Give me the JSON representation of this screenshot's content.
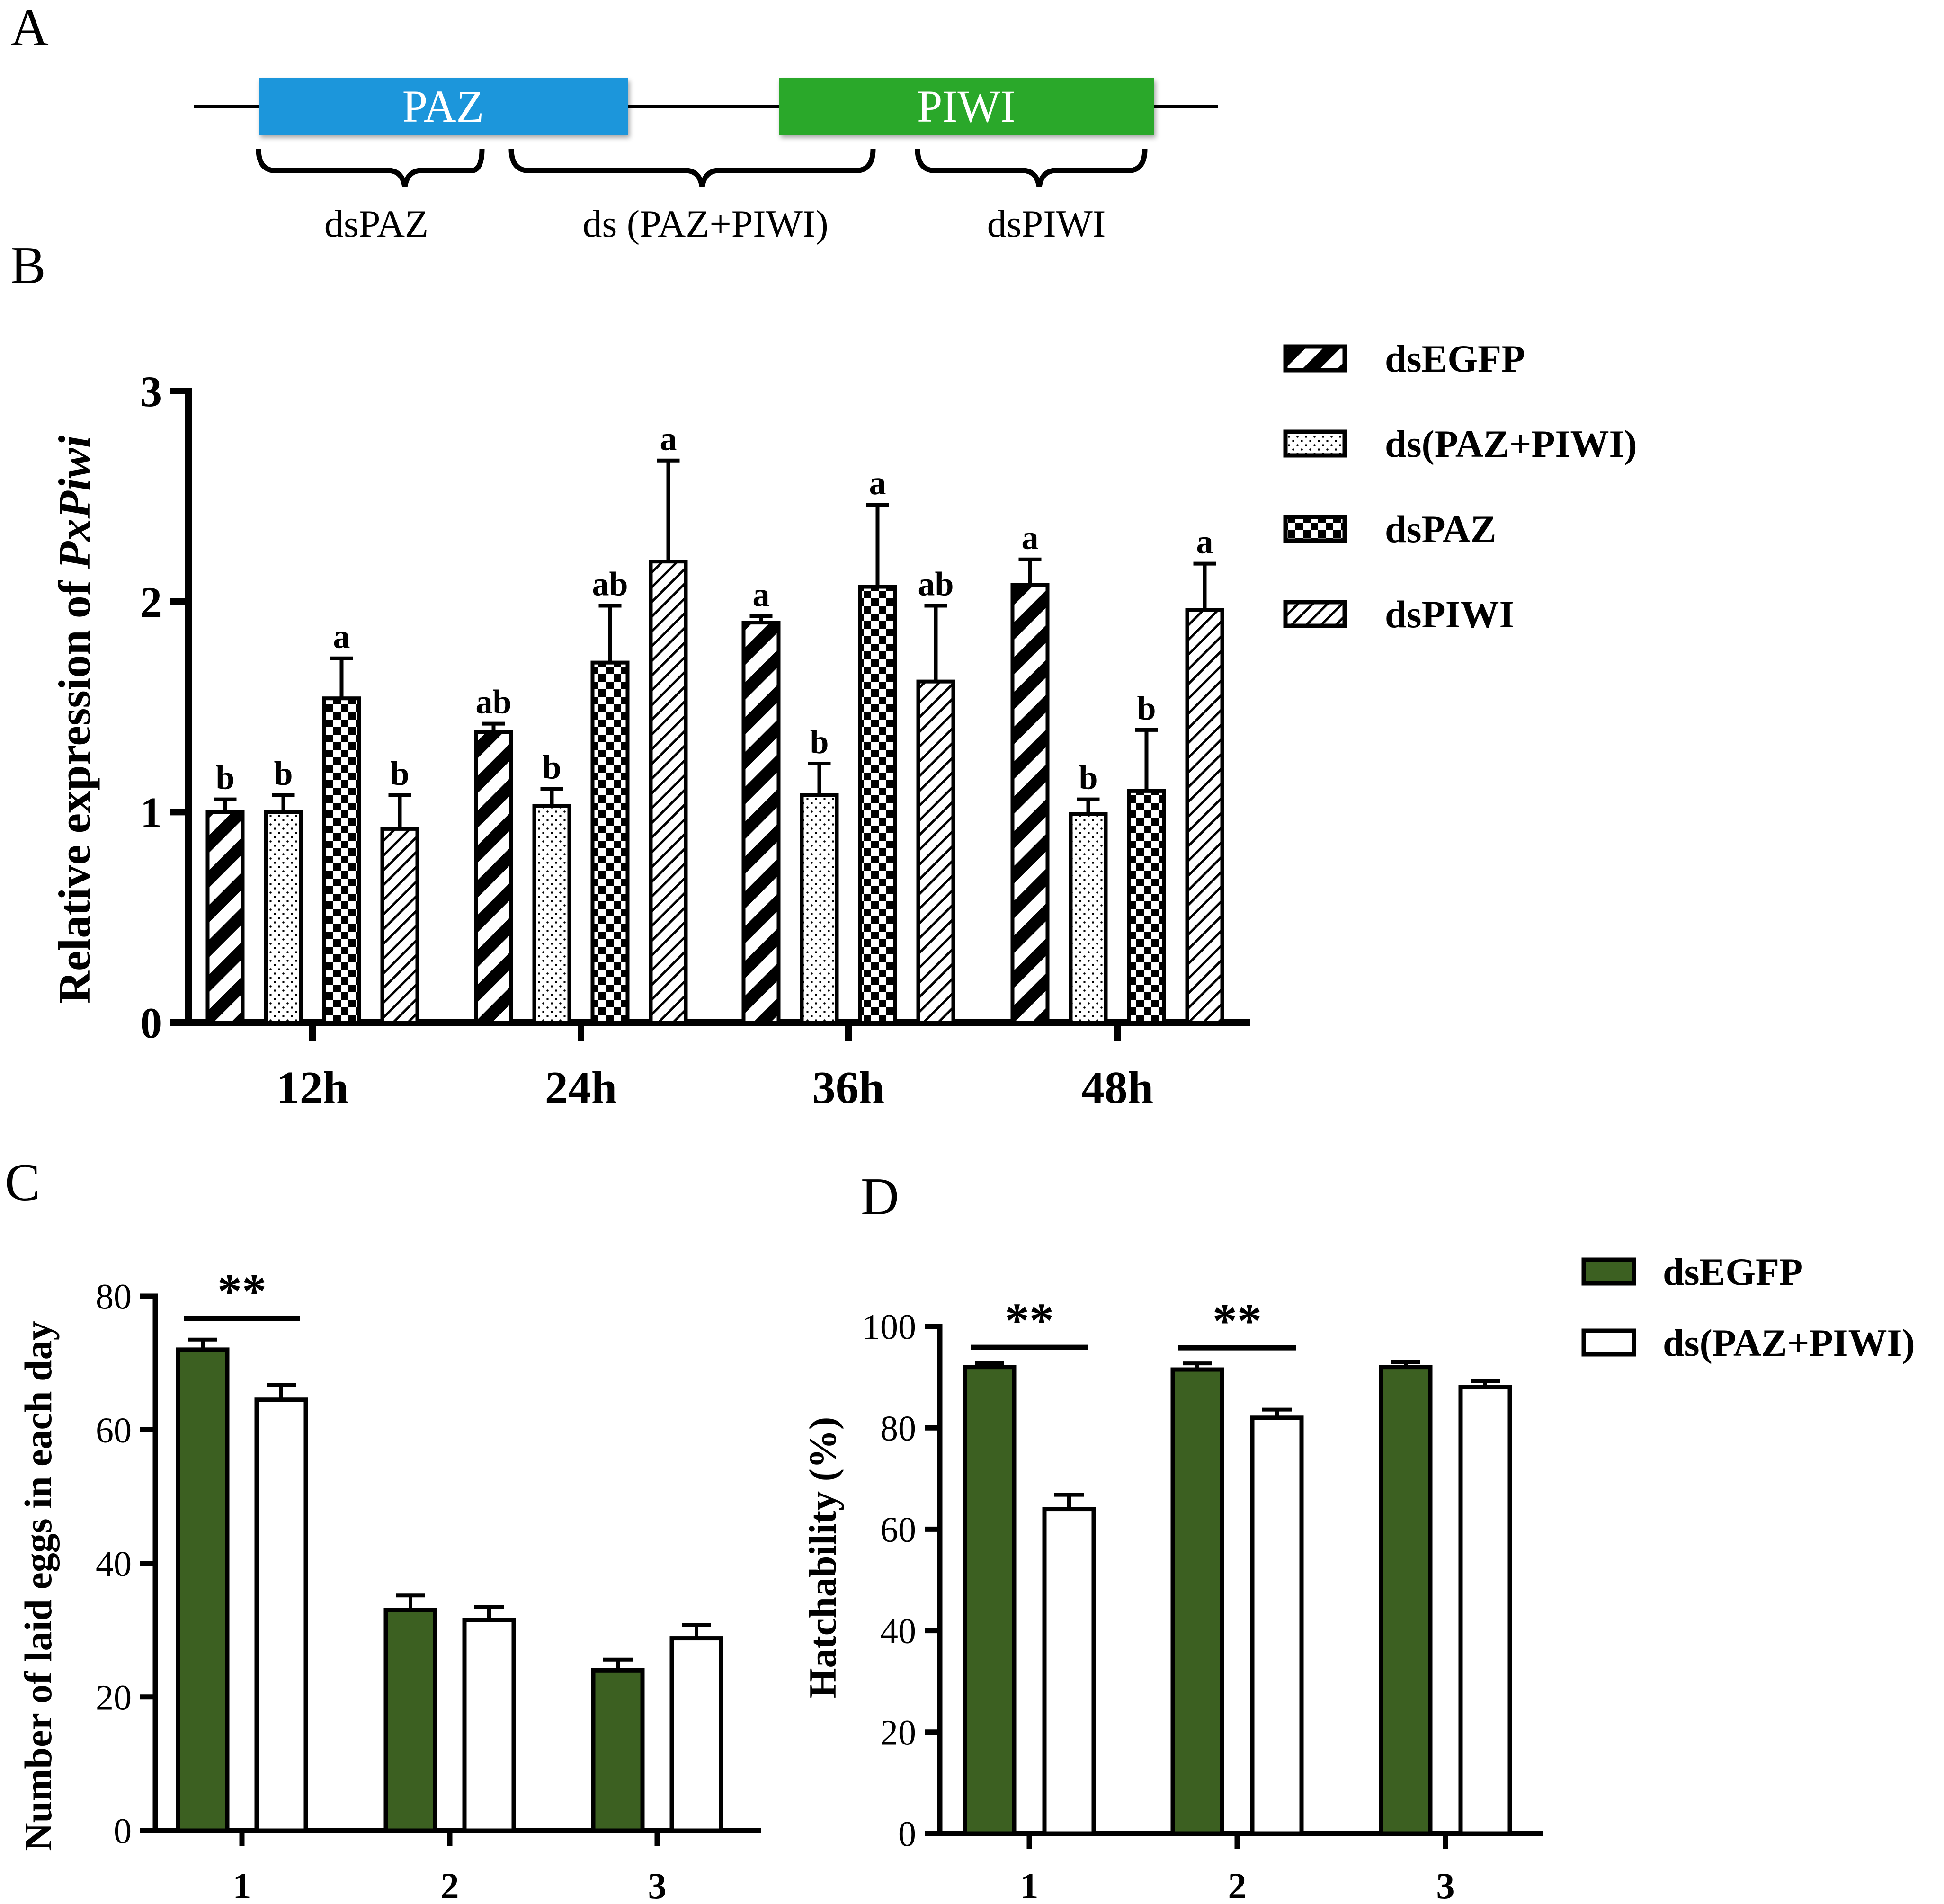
{
  "colors": {
    "ink": "#000000",
    "paz_blue": "#1b96db",
    "piwi_green": "#2aa82a",
    "dark_green": "#3c6021",
    "white": "#ffffff"
  },
  "panelA": {
    "letter": "A",
    "domains": [
      {
        "label": "PAZ",
        "color": "#1b96db"
      },
      {
        "label": "PIWI",
        "color": "#2aa82a"
      }
    ],
    "fragments": [
      "dsPAZ",
      "ds (PAZ+PIWI)",
      "dsPIWI"
    ]
  },
  "panelB": {
    "letter": "B"
  },
  "panelC": {
    "letter": "C"
  },
  "panelD": {
    "letter": "D"
  },
  "chart_data": [
    {
      "panel": "B",
      "type": "bar",
      "title": "",
      "xlabel": "",
      "ylabel": "Relative expression of ",
      "ylabel_italic": "PxPiwi",
      "ylim": [
        0,
        3
      ],
      "yticks": [
        "0",
        "1",
        "2",
        "3"
      ],
      "categories": [
        "12h",
        "24h",
        "36h",
        "48h"
      ],
      "legend": "right",
      "series": [
        {
          "name": "dsEGFP",
          "pattern": "wide-diagonal",
          "values": [
            1.0,
            1.38,
            1.9,
            2.08
          ],
          "errors": [
            0.06,
            0.04,
            0.03,
            0.12
          ],
          "letters": [
            "b",
            "ab",
            "a",
            "a"
          ]
        },
        {
          "name": "ds(PAZ+PIWI)",
          "pattern": "dots",
          "values": [
            1.0,
            1.03,
            1.08,
            0.99
          ],
          "errors": [
            0.08,
            0.08,
            0.15,
            0.07
          ],
          "letters": [
            "b",
            "b",
            "b",
            "b"
          ]
        },
        {
          "name": "dsPAZ",
          "pattern": "checker",
          "values": [
            1.54,
            1.71,
            2.07,
            1.1
          ],
          "errors": [
            0.19,
            0.27,
            0.39,
            0.29
          ],
          "letters": [
            "a",
            "ab",
            "a",
            "b"
          ]
        },
        {
          "name": "dsPIWI",
          "pattern": "thin-diagonal",
          "values": [
            0.92,
            2.19,
            1.62,
            1.96
          ],
          "errors": [
            0.16,
            0.48,
            0.36,
            0.22
          ],
          "letters": [
            "b",
            "a",
            "ab",
            "a"
          ]
        }
      ]
    },
    {
      "panel": "C",
      "type": "bar",
      "title": "",
      "xlabel": "",
      "ylabel": "Number of laid eggs in each day",
      "ylim": [
        0,
        80
      ],
      "yticks": [
        "0",
        "20",
        "40",
        "60",
        "80"
      ],
      "categories": [
        "1",
        "2",
        "3"
      ],
      "series": [
        {
          "name": "dsEGFP",
          "values": [
            72,
            33,
            24
          ],
          "errors": [
            1.5,
            2.2,
            1.6
          ]
        },
        {
          "name": "ds(PAZ+PIWI)",
          "values": [
            64.5,
            31.5,
            28.8
          ],
          "errors": [
            2.2,
            2.0,
            2.0
          ]
        }
      ],
      "significance": [
        {
          "category": 0,
          "label": "**"
        }
      ]
    },
    {
      "panel": "D",
      "type": "bar",
      "title": "",
      "xlabel": "",
      "ylabel": "Hatchability (%)",
      "ylim": [
        0,
        100
      ],
      "yticks": [
        "0",
        "20",
        "40",
        "60",
        "80",
        "100"
      ],
      "categories": [
        "1",
        "2",
        "3"
      ],
      "legend": "top-right",
      "series": [
        {
          "name": "dsEGFP",
          "values": [
            92,
            91.5,
            92
          ],
          "errors": [
            0.8,
            1.2,
            1.0
          ]
        },
        {
          "name": "ds(PAZ+PIWI)",
          "values": [
            64,
            82,
            88
          ],
          "errors": [
            2.8,
            1.6,
            1.2
          ]
        }
      ],
      "significance": [
        {
          "category": 0,
          "label": "**"
        },
        {
          "category": 1,
          "label": "**"
        }
      ]
    }
  ]
}
